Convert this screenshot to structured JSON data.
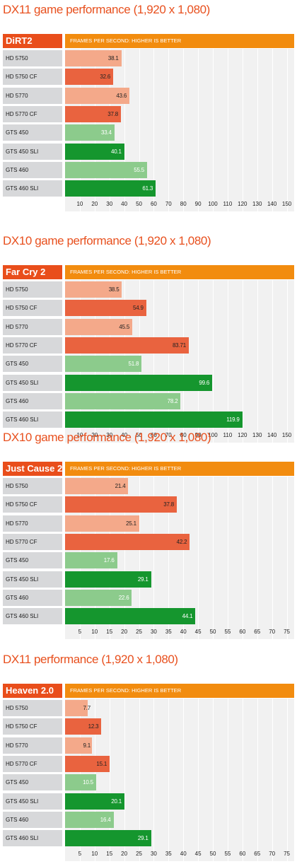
{
  "chart_data": [
    {
      "type": "bar",
      "title": "DX11 game performance (1,920 x 1,080)",
      "game": "DiRT2",
      "header": "FRAMES PER SECOND: HIGHER IS BETTER",
      "categories": [
        "HD 5750",
        "HD 5750 CF",
        "HD 5770",
        "HD 5770 CF",
        "GTS 450",
        "GTS 450 SLI",
        "GTS 460",
        "GTS 460 SLI"
      ],
      "values": [
        38.1,
        32.6,
        43.6,
        37.8,
        33.4,
        40.1,
        55.5,
        61.3
      ],
      "value_labels": [
        "38.1",
        "32.6",
        "43.6",
        "37.8",
        "33.4",
        "40.1",
        "55.5",
        "61.3"
      ],
      "ticks": [
        10,
        20,
        30,
        40,
        50,
        60,
        70,
        80,
        90,
        100,
        110,
        120,
        130,
        140,
        150
      ],
      "xlim": [
        0,
        155
      ]
    },
    {
      "type": "bar",
      "title": "DX10 game performance (1,920 x 1,080)",
      "game": "Far Cry 2",
      "header": "FRAMES PER SECOND: HIGHER IS BETTER",
      "categories": [
        "HD 5750",
        "HD 5750 CF",
        "HD 5770",
        "HD 5770 CF",
        "GTS 450",
        "GTS 450 SLI",
        "GTS 460",
        "GTS 460 SLI"
      ],
      "values": [
        38.5,
        54.9,
        45.5,
        83.71,
        51.8,
        99.6,
        78.2,
        119.9
      ],
      "value_labels": [
        "38.5",
        "54.9",
        "45.5",
        "83.71",
        "51.8",
        "99.6",
        "78.2",
        "119.9"
      ],
      "ticks": [
        10,
        20,
        30,
        40,
        50,
        60,
        70,
        80,
        90,
        100,
        110,
        120,
        130,
        140,
        150
      ],
      "xlim": [
        0,
        155
      ]
    },
    {
      "type": "bar",
      "title": "DX10 game performance (1,920 x 1,080)",
      "game": "Just Cause 2",
      "header": "FRAMES PER SECOND: HIGHER IS BETTER",
      "categories": [
        "HD 5750",
        "HD 5750 CF",
        "HD 5770",
        "HD 5770 CF",
        "GTS 450",
        "GTS 450 SLI",
        "GTS 460",
        "GTS 460 SLI"
      ],
      "values": [
        21.4,
        37.8,
        25.1,
        42.2,
        17.6,
        29.1,
        22.6,
        44.1
      ],
      "value_labels": [
        "21.4",
        "37.8",
        "25.1",
        "42.2",
        "17.6",
        "29.1",
        "22.6",
        "44.1"
      ],
      "ticks": [
        5,
        10,
        15,
        20,
        25,
        30,
        35,
        40,
        45,
        50,
        55,
        60,
        65,
        70,
        75
      ],
      "xlim": [
        0,
        77.5
      ]
    },
    {
      "type": "bar",
      "title": "DX11 performance (1,920 x 1,080)",
      "game": "Heaven 2.0",
      "header": "FRAMES PER SECOND: HIGHER IS BETTER",
      "categories": [
        "HD 5750",
        "HD 5750 CF",
        "HD 5770",
        "HD 5770 CF",
        "GTS 450",
        "GTS 450 SLI",
        "GTS 460",
        "GTS 460 SLI"
      ],
      "values": [
        7.7,
        12.3,
        9.1,
        15.1,
        10.5,
        20.1,
        16.4,
        29.1
      ],
      "value_labels": [
        "7.7",
        "12.3",
        "9.1",
        "15.1",
        "10.5",
        "20.1",
        "16.4",
        "29.1"
      ],
      "ticks": [
        5,
        10,
        15,
        20,
        25,
        30,
        35,
        40,
        45,
        50,
        55,
        60,
        65,
        70,
        75
      ],
      "xlim": [
        0,
        77.5
      ]
    }
  ],
  "colors": {
    "hd_single": "#f4a98a",
    "hd_multi": "#e9633f",
    "gts_single": "#8ccb8c",
    "gts_multi": "#15962e",
    "title": "#e8501e",
    "game_tab": "#e94e1b",
    "header_bar": "#f28c0f"
  }
}
